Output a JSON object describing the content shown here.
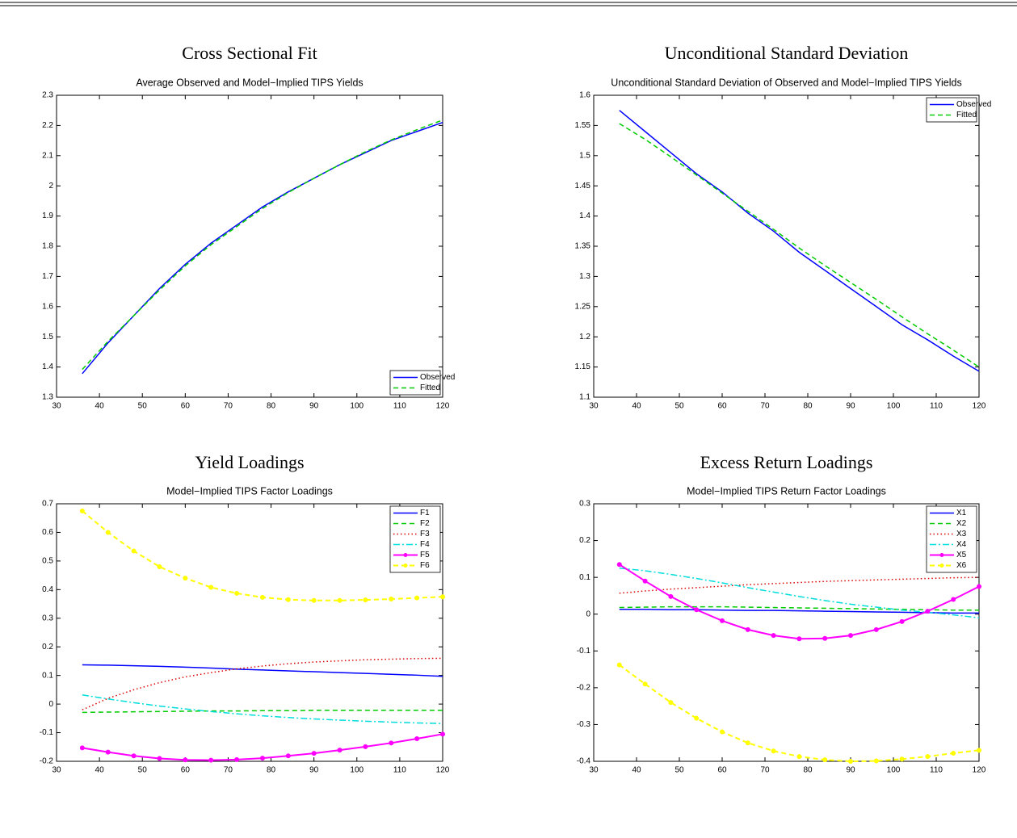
{
  "chart_data": [
    {
      "type": "line",
      "title": "Cross Sectional Fit",
      "subtitle": "Average Observed and Model−Implied TIPS Yields",
      "x": [
        36,
        42,
        48,
        54,
        60,
        66,
        72,
        78,
        84,
        90,
        96,
        102,
        108,
        114,
        120
      ],
      "xlim": [
        30,
        120
      ],
      "xticks": [
        30,
        40,
        50,
        60,
        70,
        80,
        90,
        100,
        110,
        120
      ],
      "ylim": [
        1.3,
        2.3
      ],
      "yticks": [
        1.3,
        1.4,
        1.5,
        1.6,
        1.7,
        1.8,
        1.9,
        2,
        2.1,
        2.2,
        2.3
      ],
      "legend": "lower right",
      "series": [
        {
          "name": "Observed",
          "color": "#0000ff",
          "dash": "solid",
          "values": [
            1.378,
            1.48,
            1.57,
            1.66,
            1.74,
            1.81,
            1.87,
            1.93,
            1.98,
            2.025,
            2.07,
            2.11,
            2.15,
            2.18,
            2.21
          ]
        },
        {
          "name": "Fitted",
          "color": "#00cc00",
          "dash": "dashed",
          "values": [
            1.392,
            1.485,
            1.57,
            1.655,
            1.735,
            1.805,
            1.865,
            1.925,
            1.978,
            2.025,
            2.07,
            2.113,
            2.152,
            2.186,
            2.218
          ]
        }
      ]
    },
    {
      "type": "line",
      "title": "Unconditional Standard Deviation",
      "subtitle": "Unconditional Standard Deviation of Observed and Model−Implied TIPS Yields",
      "x": [
        36,
        42,
        48,
        54,
        60,
        66,
        72,
        78,
        84,
        90,
        96,
        102,
        108,
        114,
        120
      ],
      "xlim": [
        30,
        120
      ],
      "xticks": [
        30,
        40,
        50,
        60,
        70,
        80,
        90,
        100,
        110,
        120
      ],
      "ylim": [
        1.1,
        1.6
      ],
      "yticks": [
        1.1,
        1.15,
        1.2,
        1.25,
        1.3,
        1.35,
        1.4,
        1.45,
        1.5,
        1.55,
        1.6
      ],
      "legend": "upper right",
      "series": [
        {
          "name": "Observed",
          "color": "#0000ff",
          "dash": "solid",
          "values": [
            1.575,
            1.54,
            1.505,
            1.47,
            1.44,
            1.405,
            1.375,
            1.34,
            1.31,
            1.28,
            1.25,
            1.22,
            1.195,
            1.168,
            1.143
          ]
        },
        {
          "name": "Fitted",
          "color": "#00cc00",
          "dash": "dashed",
          "values": [
            1.553,
            1.527,
            1.498,
            1.468,
            1.438,
            1.408,
            1.378,
            1.347,
            1.318,
            1.29,
            1.262,
            1.233,
            1.205,
            1.178,
            1.15
          ]
        }
      ]
    },
    {
      "type": "line",
      "title": "Yield Loadings",
      "subtitle": "Model−Implied TIPS Factor Loadings",
      "x": [
        36,
        42,
        48,
        54,
        60,
        66,
        72,
        78,
        84,
        90,
        96,
        102,
        108,
        114,
        120
      ],
      "xlim": [
        30,
        120
      ],
      "xticks": [
        30,
        40,
        50,
        60,
        70,
        80,
        90,
        100,
        110,
        120
      ],
      "ylim": [
        -0.2,
        0.7
      ],
      "yticks": [
        -0.2,
        -0.1,
        0,
        0.1,
        0.2,
        0.3,
        0.4,
        0.5,
        0.6,
        0.7
      ],
      "legend": "upper right",
      "series": [
        {
          "name": "F1",
          "color": "#0000ff",
          "dash": "solid",
          "values": [
            0.137,
            0.136,
            0.134,
            0.132,
            0.129,
            0.126,
            0.122,
            0.119,
            0.116,
            0.113,
            0.11,
            0.107,
            0.104,
            0.101,
            0.097
          ]
        },
        {
          "name": "F2",
          "color": "#00cc00",
          "dash": "dashed",
          "values": [
            -0.029,
            -0.028,
            -0.027,
            -0.026,
            -0.025,
            -0.024,
            -0.024,
            -0.023,
            -0.023,
            -0.022,
            -0.022,
            -0.022,
            -0.022,
            -0.022,
            -0.022
          ]
        },
        {
          "name": "F3",
          "color": "#dd0000",
          "dash": "dotted",
          "values": [
            -0.02,
            0.02,
            0.05,
            0.075,
            0.095,
            0.11,
            0.123,
            0.133,
            0.141,
            0.147,
            0.151,
            0.155,
            0.157,
            0.159,
            0.16
          ]
        },
        {
          "name": "F4",
          "color": "#00dddd",
          "dash": "dashdot",
          "values": [
            0.032,
            0.018,
            0.005,
            -0.007,
            -0.017,
            -0.026,
            -0.034,
            -0.041,
            -0.047,
            -0.052,
            -0.056,
            -0.06,
            -0.063,
            -0.066,
            -0.068
          ]
        },
        {
          "name": "F5",
          "color": "#ff00ff",
          "dash": "solid",
          "marker": true,
          "values": [
            -0.153,
            -0.168,
            -0.181,
            -0.19,
            -0.195,
            -0.196,
            -0.194,
            -0.189,
            -0.181,
            -0.172,
            -0.161,
            -0.149,
            -0.136,
            -0.121,
            -0.105
          ]
        },
        {
          "name": "F6",
          "color": "#ffff00",
          "dash": "dashed",
          "marker": true,
          "values": [
            0.675,
            0.6,
            0.535,
            0.48,
            0.44,
            0.408,
            0.387,
            0.373,
            0.365,
            0.362,
            0.362,
            0.364,
            0.367,
            0.371,
            0.375
          ]
        }
      ]
    },
    {
      "type": "line",
      "title": "Excess Return Loadings",
      "subtitle": "Model−Implied TIPS Return Factor Loadings",
      "x": [
        36,
        42,
        48,
        54,
        60,
        66,
        72,
        78,
        84,
        90,
        96,
        102,
        108,
        114,
        120
      ],
      "xlim": [
        30,
        120
      ],
      "xticks": [
        30,
        40,
        50,
        60,
        70,
        80,
        90,
        100,
        110,
        120
      ],
      "ylim": [
        -0.4,
        0.3
      ],
      "yticks": [
        -0.4,
        -0.3,
        -0.2,
        -0.1,
        0,
        0.1,
        0.2,
        0.3
      ],
      "legend": "upper right",
      "series": [
        {
          "name": "X1",
          "color": "#0000ff",
          "dash": "solid",
          "values": [
            0.013,
            0.013,
            0.012,
            0.012,
            0.011,
            0.01,
            0.01,
            0.009,
            0.008,
            0.007,
            0.006,
            0.005,
            0.004,
            0.003,
            0.003
          ]
        },
        {
          "name": "X2",
          "color": "#00cc00",
          "dash": "dashed",
          "values": [
            0.018,
            0.019,
            0.02,
            0.02,
            0.02,
            0.019,
            0.018,
            0.017,
            0.016,
            0.015,
            0.014,
            0.013,
            0.012,
            0.011,
            0.011
          ]
        },
        {
          "name": "X3",
          "color": "#dd0000",
          "dash": "dotted",
          "values": [
            0.057,
            0.063,
            0.068,
            0.072,
            0.076,
            0.08,
            0.083,
            0.086,
            0.089,
            0.091,
            0.093,
            0.095,
            0.097,
            0.099,
            0.1
          ]
        },
        {
          "name": "X4",
          "color": "#00dddd",
          "dash": "dashdot",
          "values": [
            0.125,
            0.118,
            0.108,
            0.097,
            0.085,
            0.072,
            0.06,
            0.048,
            0.037,
            0.027,
            0.019,
            0.011,
            0.005,
            -0.002,
            -0.01
          ]
        },
        {
          "name": "X5",
          "color": "#ff00ff",
          "dash": "solid",
          "marker": true,
          "values": [
            0.135,
            0.09,
            0.048,
            0.012,
            -0.018,
            -0.042,
            -0.058,
            -0.067,
            -0.066,
            -0.058,
            -0.042,
            -0.02,
            0.008,
            0.04,
            0.075
          ]
        },
        {
          "name": "X6",
          "color": "#ffff00",
          "dash": "dashed",
          "marker": true,
          "values": [
            -0.138,
            -0.19,
            -0.24,
            -0.283,
            -0.32,
            -0.35,
            -0.372,
            -0.387,
            -0.396,
            -0.4,
            -0.399,
            -0.394,
            -0.387,
            -0.378,
            -0.37
          ]
        }
      ]
    }
  ]
}
